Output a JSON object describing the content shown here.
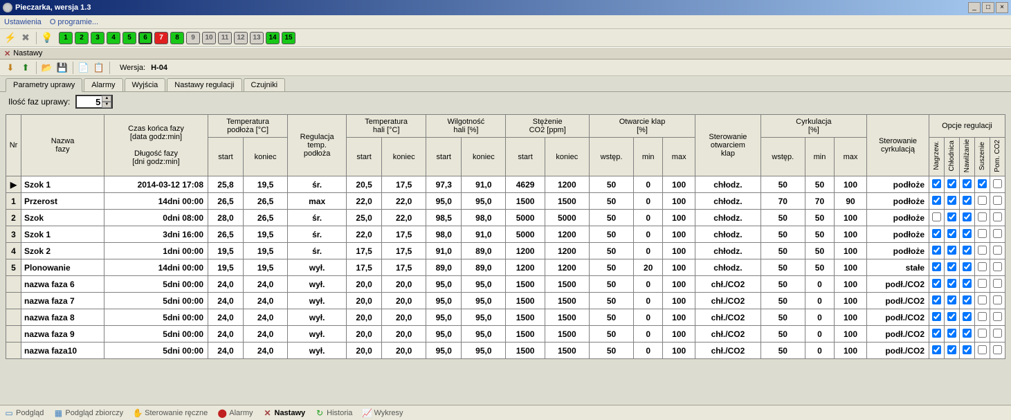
{
  "window": {
    "title": "Pieczarka, wersja 1.3",
    "min": "_",
    "max": "□",
    "close": "×"
  },
  "menu": {
    "item1": "Ustawienia",
    "item2": "O programie..."
  },
  "rooms": [
    {
      "n": "1",
      "cls": "room-green"
    },
    {
      "n": "2",
      "cls": "room-green"
    },
    {
      "n": "3",
      "cls": "room-green"
    },
    {
      "n": "4",
      "cls": "room-green"
    },
    {
      "n": "5",
      "cls": "room-green"
    },
    {
      "n": "6",
      "cls": "room-green room-sel"
    },
    {
      "n": "7",
      "cls": "room-red"
    },
    {
      "n": "8",
      "cls": "room-green"
    },
    {
      "n": "9",
      "cls": "room-grey"
    },
    {
      "n": "10",
      "cls": "room-grey"
    },
    {
      "n": "11",
      "cls": "room-grey"
    },
    {
      "n": "12",
      "cls": "room-grey"
    },
    {
      "n": "13",
      "cls": "room-grey"
    },
    {
      "n": "14",
      "cls": "room-green"
    },
    {
      "n": "15",
      "cls": "room-green"
    }
  ],
  "section": {
    "title": "Nastawy"
  },
  "version": {
    "label": "Wersja:",
    "value": "H-04"
  },
  "tabs": {
    "t1": "Parametry uprawy",
    "t2": "Alarmy",
    "t3": "Wyjścia",
    "t4": "Nastawy regulacji",
    "t5": "Czujniki"
  },
  "phaseCount": {
    "label": "Ilość faz uprawy:",
    "value": "5"
  },
  "headers": {
    "nr": "Nr",
    "nazwa": "Nazwa\nfazy",
    "czas": "Czas końca fazy\n[data godz:min]\n\nDługość fazy\n[dni godz:min]",
    "temp_podloza": "Temperatura\npodłoża [°C]",
    "reg": "Regulacja\ntemp.\npodłoża",
    "temp_hali": "Temperatura\nhali [°C]",
    "wilg": "Wilgotność\nhali [%]",
    "co2": "Stężenie\nCO2 [ppm]",
    "klap": "Otwarcie klap\n[%]",
    "ster_klap": "Sterowanie\notwarciem\nklap",
    "cyrk": "Cyrkulacja\n[%]",
    "ster_cyrk": "Sterowanie\ncyrkulacją",
    "opcje": "Opcje regulacji",
    "start": "start",
    "koniec": "koniec",
    "wstep": "wstęp.",
    "min": "min",
    "max": "max",
    "o1": "Nagrzew.",
    "o2": "Chłodnica",
    "o3": "Nawilżanie",
    "o4": "Suszenie",
    "o5": "Pom. CO2"
  },
  "rows": [
    {
      "nr": "▶",
      "name": "Szok 1",
      "time": "2014-03-12 17:08",
      "tps": "25,8",
      "tpk": "19,5",
      "reg": "śr.",
      "ths": "20,5",
      "thk": "17,5",
      "whs": "97,3",
      "whk": "91,0",
      "co2s": "4629",
      "co2k": "1200",
      "kw": "50",
      "kmin": "0",
      "kmax": "100",
      "sk": "chłodz.",
      "cw": "50",
      "cmin": "50",
      "cmax": "100",
      "sc": "podłoże",
      "c": [
        true,
        true,
        true,
        true,
        false
      ]
    },
    {
      "nr": "1",
      "name": "Przerost",
      "time": "14dni 00:00",
      "tps": "26,5",
      "tpk": "26,5",
      "reg": "max",
      "ths": "22,0",
      "thk": "22,0",
      "whs": "95,0",
      "whk": "95,0",
      "co2s": "1500",
      "co2k": "1500",
      "kw": "50",
      "kmin": "0",
      "kmax": "100",
      "sk": "chłodz.",
      "cw": "70",
      "cmin": "70",
      "cmax": "90",
      "sc": "podłoże",
      "c": [
        true,
        true,
        true,
        false,
        false
      ]
    },
    {
      "nr": "2",
      "name": "Szok",
      "time": "0dni 08:00",
      "tps": "28,0",
      "tpk": "26,5",
      "reg": "śr.",
      "ths": "25,0",
      "thk": "22,0",
      "whs": "98,5",
      "whk": "98,0",
      "co2s": "5000",
      "co2k": "5000",
      "kw": "50",
      "kmin": "0",
      "kmax": "100",
      "sk": "chłodz.",
      "cw": "50",
      "cmin": "50",
      "cmax": "100",
      "sc": "podłoże",
      "c": [
        false,
        true,
        true,
        false,
        false
      ]
    },
    {
      "nr": "3",
      "name": "Szok 1",
      "time": "3dni 16:00",
      "tps": "26,5",
      "tpk": "19,5",
      "reg": "śr.",
      "ths": "22,0",
      "thk": "17,5",
      "whs": "98,0",
      "whk": "91,0",
      "co2s": "5000",
      "co2k": "1200",
      "kw": "50",
      "kmin": "0",
      "kmax": "100",
      "sk": "chłodz.",
      "cw": "50",
      "cmin": "50",
      "cmax": "100",
      "sc": "podłoże",
      "c": [
        true,
        true,
        true,
        false,
        false
      ]
    },
    {
      "nr": "4",
      "name": "Szok 2",
      "time": "1dni 00:00",
      "tps": "19,5",
      "tpk": "19,5",
      "reg": "śr.",
      "ths": "17,5",
      "thk": "17,5",
      "whs": "91,0",
      "whk": "89,0",
      "co2s": "1200",
      "co2k": "1200",
      "kw": "50",
      "kmin": "0",
      "kmax": "100",
      "sk": "chłodz.",
      "cw": "50",
      "cmin": "50",
      "cmax": "100",
      "sc": "podłoże",
      "c": [
        true,
        true,
        true,
        false,
        false
      ]
    },
    {
      "nr": "5",
      "name": "Plonowanie",
      "time": "14dni 00:00",
      "tps": "19,5",
      "tpk": "19,5",
      "reg": "wył.",
      "ths": "17,5",
      "thk": "17,5",
      "whs": "89,0",
      "whk": "89,0",
      "co2s": "1200",
      "co2k": "1200",
      "kw": "50",
      "kmin": "20",
      "kmax": "100",
      "sk": "chłodz.",
      "cw": "50",
      "cmin": "50",
      "cmax": "100",
      "sc": "stałe",
      "c": [
        true,
        true,
        true,
        false,
        false
      ]
    },
    {
      "nr": "",
      "name": "nazwa faza 6",
      "time": "5dni 00:00",
      "tps": "24,0",
      "tpk": "24,0",
      "reg": "wył.",
      "ths": "20,0",
      "thk": "20,0",
      "whs": "95,0",
      "whk": "95,0",
      "co2s": "1500",
      "co2k": "1500",
      "kw": "50",
      "kmin": "0",
      "kmax": "100",
      "sk": "chł./CO2",
      "cw": "50",
      "cmin": "0",
      "cmax": "100",
      "sc": "podł./CO2",
      "c": [
        true,
        true,
        true,
        false,
        false
      ]
    },
    {
      "nr": "",
      "name": "nazwa faza 7",
      "time": "5dni 00:00",
      "tps": "24,0",
      "tpk": "24,0",
      "reg": "wył.",
      "ths": "20,0",
      "thk": "20,0",
      "whs": "95,0",
      "whk": "95,0",
      "co2s": "1500",
      "co2k": "1500",
      "kw": "50",
      "kmin": "0",
      "kmax": "100",
      "sk": "chł./CO2",
      "cw": "50",
      "cmin": "0",
      "cmax": "100",
      "sc": "podł./CO2",
      "c": [
        true,
        true,
        true,
        false,
        false
      ]
    },
    {
      "nr": "",
      "name": "nazwa faza 8",
      "time": "5dni 00:00",
      "tps": "24,0",
      "tpk": "24,0",
      "reg": "wył.",
      "ths": "20,0",
      "thk": "20,0",
      "whs": "95,0",
      "whk": "95,0",
      "co2s": "1500",
      "co2k": "1500",
      "kw": "50",
      "kmin": "0",
      "kmax": "100",
      "sk": "chł./CO2",
      "cw": "50",
      "cmin": "0",
      "cmax": "100",
      "sc": "podł./CO2",
      "c": [
        true,
        true,
        true,
        false,
        false
      ]
    },
    {
      "nr": "",
      "name": "nazwa faza 9",
      "time": "5dni 00:00",
      "tps": "24,0",
      "tpk": "24,0",
      "reg": "wył.",
      "ths": "20,0",
      "thk": "20,0",
      "whs": "95,0",
      "whk": "95,0",
      "co2s": "1500",
      "co2k": "1500",
      "kw": "50",
      "kmin": "0",
      "kmax": "100",
      "sk": "chł./CO2",
      "cw": "50",
      "cmin": "0",
      "cmax": "100",
      "sc": "podł./CO2",
      "c": [
        true,
        true,
        true,
        false,
        false
      ]
    },
    {
      "nr": "",
      "name": "nazwa faza10",
      "time": "5dni 00:00",
      "tps": "24,0",
      "tpk": "24,0",
      "reg": "wył.",
      "ths": "20,0",
      "thk": "20,0",
      "whs": "95,0",
      "whk": "95,0",
      "co2s": "1500",
      "co2k": "1500",
      "kw": "50",
      "kmin": "0",
      "kmax": "100",
      "sk": "chł./CO2",
      "cw": "50",
      "cmin": "0",
      "cmax": "100",
      "sc": "podł./CO2",
      "c": [
        true,
        true,
        true,
        false,
        false
      ]
    }
  ],
  "statusbar": {
    "s1": "Podgląd",
    "s2": "Podgląd zbiorczy",
    "s3": "Sterowanie ręczne",
    "s4": "Alarmy",
    "s5": "Nastawy",
    "s6": "Historia",
    "s7": "Wykresy"
  }
}
